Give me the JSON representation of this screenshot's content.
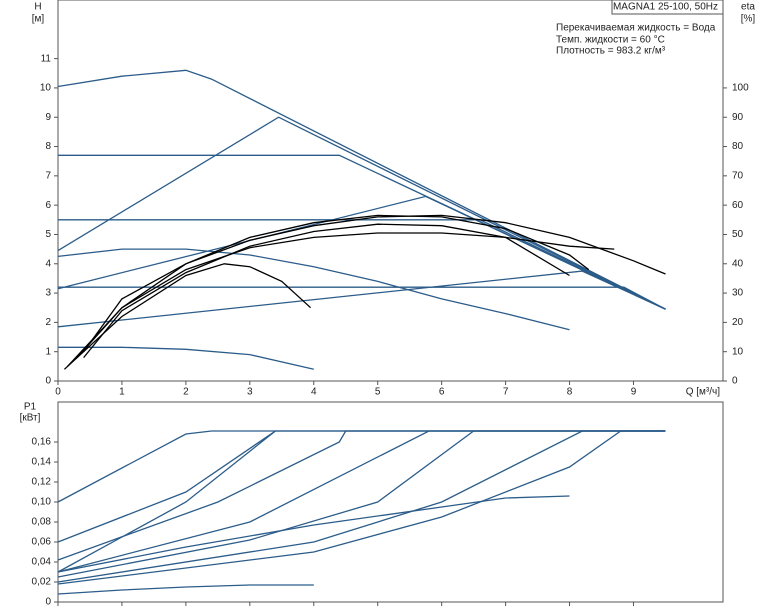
{
  "chart_data": [
    {
      "type": "line",
      "ylabel": "H",
      "yunit": "[м]",
      "y2label": "eta",
      "y2unit": "[%]",
      "xlabel": "Q [м³/ч]",
      "info_title": "MAGNA1 25-100, 50Hz",
      "info_lines": [
        "Перекачиваемая жидкость = Вода",
        "Темп. жидкости = 60 °C",
        "Плотность = 983.2 кг/м³"
      ],
      "xlim": [
        0,
        10.4
      ],
      "xticks": [
        0,
        1,
        2,
        3,
        4,
        5,
        6,
        7,
        8,
        9
      ],
      "ylim": [
        0,
        13
      ],
      "yticks": [
        0,
        1,
        2,
        3,
        4,
        5,
        6,
        7,
        8,
        9,
        10,
        11
      ],
      "y2lim": [
        0,
        130
      ],
      "y2ticks": [
        0,
        10,
        20,
        30,
        40,
        50,
        60,
        70,
        80,
        90,
        100
      ],
      "series": [
        {
          "color": "#2b5c8a",
          "x": [
            0,
            1,
            2,
            2.4,
            9.5
          ],
          "values": [
            10.05,
            10.4,
            10.6,
            10.3,
            2.45
          ]
        },
        {
          "color": "#2b5c8a",
          "x": [
            0,
            4.4,
            9.5
          ],
          "values": [
            7.7,
            7.7,
            2.45
          ]
        },
        {
          "color": "#2b5c8a",
          "x": [
            0,
            6.6,
            9.5
          ],
          "values": [
            5.5,
            5.5,
            2.45
          ]
        },
        {
          "color": "#2b5c8a",
          "x": [
            0,
            8.85,
            9.5
          ],
          "values": [
            3.2,
            3.2,
            2.45
          ]
        },
        {
          "color": "#2b5c8a",
          "x": [
            0,
            3.45,
            9.5
          ],
          "values": [
            4.45,
            9.0,
            2.45
          ]
        },
        {
          "color": "#2b5c8a",
          "x": [
            0,
            5.75,
            9.5
          ],
          "values": [
            3.15,
            6.3,
            2.45
          ]
        },
        {
          "color": "#2b5c8a",
          "x": [
            0,
            8.2,
            9.5
          ],
          "values": [
            1.85,
            3.75,
            2.45
          ]
        },
        {
          "color": "#2b5c8a",
          "x": [
            0,
            1,
            2,
            3,
            4,
            5,
            6,
            7,
            8
          ],
          "values": [
            4.25,
            4.5,
            4.5,
            4.3,
            3.9,
            3.4,
            2.8,
            2.3,
            1.75
          ]
        },
        {
          "color": "#2b5c8a",
          "x": [
            0,
            1,
            2,
            3,
            4
          ],
          "values": [
            1.15,
            1.15,
            1.08,
            0.9,
            0.4
          ]
        },
        {
          "color": "#000000",
          "axis": "y2",
          "x": [
            0.15,
            1,
            2,
            3,
            4,
            5,
            6,
            7,
            8,
            9,
            9.5
          ],
          "values": [
            5,
            25,
            40,
            48,
            53,
            56,
            56.5,
            54,
            49,
            41,
            36.5
          ]
        },
        {
          "color": "#000000",
          "axis": "y2",
          "x": [
            0.3,
            1,
            2,
            3,
            4,
            5,
            6,
            7,
            8,
            8.7
          ],
          "values": [
            8,
            25,
            38,
            45.5,
            49,
            50.5,
            50.5,
            49,
            46,
            45
          ]
        },
        {
          "color": "#000000",
          "axis": "y2",
          "x": [
            0.4,
            1,
            2,
            3,
            4,
            5,
            6,
            7,
            8
          ],
          "values": [
            8,
            24,
            37,
            46,
            51,
            53.5,
            53,
            49,
            36
          ]
        },
        {
          "color": "#000000",
          "axis": "y2",
          "x": [
            0.1,
            1,
            2,
            2.6,
            3,
            3.5,
            3.95
          ],
          "values": [
            4,
            22,
            36,
            40,
            39,
            34,
            25
          ]
        },
        {
          "color": "#000000",
          "axis": "y2",
          "x": [
            0.4,
            1,
            2,
            3,
            4,
            5,
            6,
            7,
            8,
            8.3
          ],
          "values": [
            10,
            28,
            40,
            49,
            54,
            56.5,
            56,
            52,
            43,
            38
          ]
        }
      ]
    },
    {
      "type": "line",
      "ylabel": "P1",
      "yunit": "[кВт]",
      "xlim": [
        0,
        10.4
      ],
      "xticks": [
        0,
        1,
        2,
        3,
        4,
        5,
        6,
        7,
        8,
        9
      ],
      "ylim": [
        0,
        0.2
      ],
      "yticks": [
        0,
        {
          "value": 0.02,
          "label": "0,02"
        },
        {
          "value": 0.04,
          "label": "0,04"
        },
        {
          "value": 0.06,
          "label": "0,06"
        },
        {
          "value": 0.08,
          "label": "0,08"
        },
        {
          "value": 0.1,
          "label": "0,10"
        },
        {
          "value": 0.12,
          "label": "0,12"
        },
        {
          "value": 0.14,
          "label": "0,14"
        },
        {
          "value": 0.16,
          "label": "0,16"
        }
      ],
      "series": [
        {
          "color": "#2b5c8a",
          "x": [
            0,
            2,
            2.4,
            9.5
          ],
          "values": [
            0.1,
            0.168,
            0.171,
            0.171
          ]
        },
        {
          "color": "#2b5c8a",
          "x": [
            0,
            2,
            3.4,
            9.5
          ],
          "values": [
            0.06,
            0.11,
            0.171,
            0.171
          ]
        },
        {
          "color": "#2b5c8a",
          "x": [
            0,
            2,
            3.4
          ],
          "values": [
            0.03,
            0.1,
            0.171
          ]
        },
        {
          "color": "#2b5c8a",
          "x": [
            0,
            2.5,
            4.4,
            4.5,
            9.5
          ],
          "values": [
            0.042,
            0.1,
            0.16,
            0.171,
            0.171
          ]
        },
        {
          "color": "#2b5c8a",
          "x": [
            0,
            3,
            5.8,
            9.5
          ],
          "values": [
            0.03,
            0.08,
            0.171,
            0.171
          ]
        },
        {
          "color": "#2b5c8a",
          "x": [
            0,
            3,
            5,
            6.5,
            9.5
          ],
          "values": [
            0.025,
            0.062,
            0.1,
            0.171,
            0.171
          ]
        },
        {
          "color": "#2b5c8a",
          "x": [
            0,
            4,
            6,
            8.2,
            9.5
          ],
          "values": [
            0.02,
            0.06,
            0.1,
            0.171,
            0.171
          ]
        },
        {
          "color": "#2b5c8a",
          "x": [
            0,
            4,
            6,
            8,
            8.8,
            9.5
          ],
          "values": [
            0.018,
            0.05,
            0.085,
            0.135,
            0.171,
            0.171
          ]
        },
        {
          "color": "#2b5c8a",
          "x": [
            0,
            2,
            4,
            6,
            7,
            8
          ],
          "values": [
            0.03,
            0.055,
            0.077,
            0.095,
            0.104,
            0.106
          ]
        },
        {
          "color": "#2b5c8a",
          "x": [
            0,
            1,
            2,
            3,
            4
          ],
          "values": [
            0.008,
            0.012,
            0.015,
            0.017,
            0.017
          ]
        }
      ]
    }
  ]
}
